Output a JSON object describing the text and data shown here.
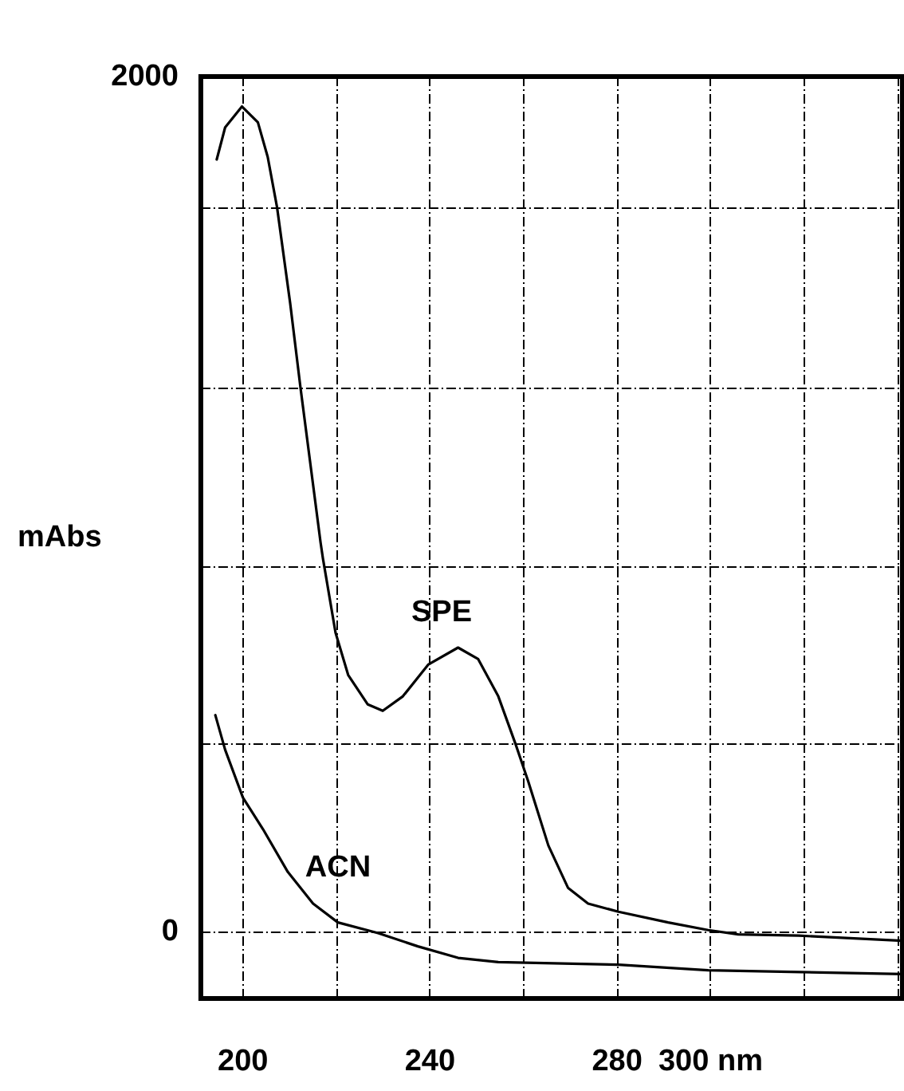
{
  "chart_data": {
    "type": "line",
    "ylabel": "mAbs",
    "xlim": [
      191,
      341
    ],
    "ylim": [
      -157,
      2000
    ],
    "xticks": [
      200,
      {
        "value": 220,
        "label": null
      },
      240,
      {
        "value": 260,
        "label": null
      },
      280,
      {
        "value": 300,
        "label": "300 nm"
      },
      {
        "value": 320,
        "label": null
      },
      {
        "value": 340,
        "label": null
      }
    ],
    "yticks": [
      0,
      {
        "value": 438,
        "label": null
      },
      {
        "value": 855,
        "label": null
      },
      {
        "value": 1273,
        "label": null
      },
      {
        "value": 1694,
        "label": null
      },
      2000
    ],
    "grid": true,
    "marker": "none",
    "line_style": "solid",
    "series": [
      {
        "color": "#000000",
        "x": [
          194.4,
          196.2,
          199.8,
          203.2,
          205.3,
          207.3,
          210.1,
          212.3,
          216.6,
          217.1,
          219.8,
          222.5,
          226.7,
          229.9,
          234.2,
          239.6,
          246.0,
          250.3,
          254.6,
          258.3,
          261.0,
          265.3,
          269.5,
          273.8,
          280.3,
          290.9,
          299.5,
          305.9,
          318.8,
          341
        ],
        "values": [
          1806,
          1881,
          1930,
          1893,
          1812,
          1694,
          1470,
          1273,
          910,
          873,
          699,
          600,
          531,
          516,
          550,
          624,
          664,
          637,
          550,
          438,
          351,
          201,
          102,
          65,
          46,
          21,
          3,
          -7,
          -10,
          -22
        ]
      },
      {
        "color": "#000000",
        "x": [
          194.1,
          196.2,
          200,
          204.3,
          209.6,
          215,
          220.3,
          228.9,
          237.4,
          246,
          254.6,
          280.3,
          299.5,
          341
        ],
        "values": [
          506,
          425,
          313,
          239,
          139,
          65,
          21,
          -4,
          -35,
          -62,
          -72,
          -78,
          -91,
          -100
        ]
      }
    ],
    "annotations": [
      "SPE",
      "ACN"
    ]
  }
}
